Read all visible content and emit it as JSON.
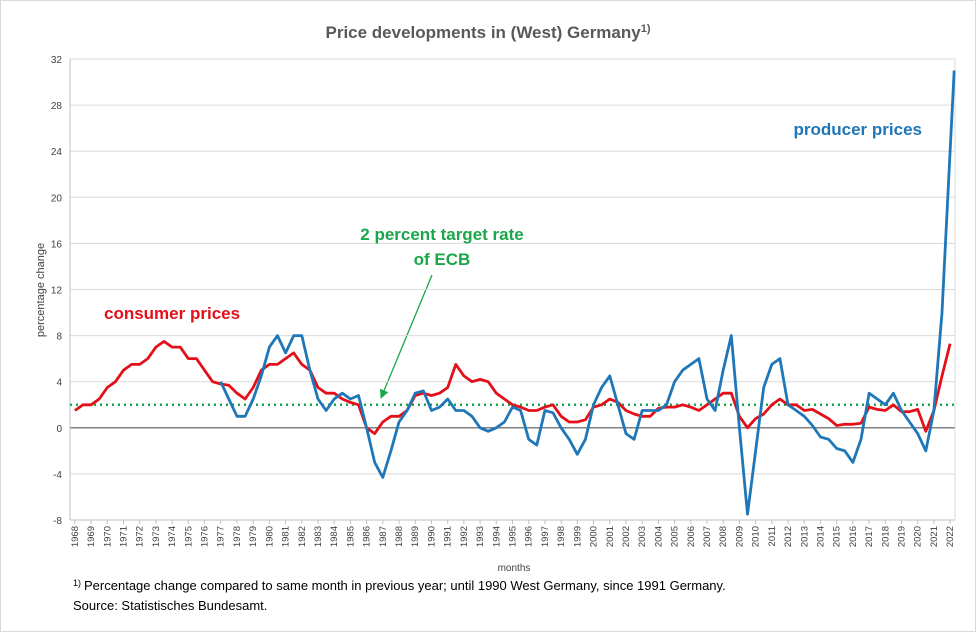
{
  "chart_data": {
    "type": "line",
    "title": "Price developments in (West) Germany",
    "title_superscript": "1)",
    "y_label": "percentage change",
    "x_label": "months",
    "footnote_marker": "1)",
    "footnote": "Percentage change compared to same month in previous year; until 1990 West Germany, since 1991 Germany.",
    "source": "Source: Statistisches Bundesamt.",
    "target": 2,
    "target_color": "#1aa64a",
    "target_label": [
      "2 percent target rate",
      "of ECB"
    ],
    "xlim": [
      1967.7,
      2022.3
    ],
    "ylim": [
      -8,
      32
    ],
    "yticks": [
      -8,
      -4,
      0,
      4,
      8,
      12,
      16,
      20,
      24,
      28,
      32
    ],
    "xticks": [
      1968,
      1969,
      1970,
      1971,
      1972,
      1973,
      1974,
      1975,
      1976,
      1977,
      1978,
      1979,
      1980,
      1981,
      1982,
      1983,
      1984,
      1985,
      1986,
      1987,
      1988,
      1989,
      1990,
      1991,
      1992,
      1993,
      1994,
      1995,
      1996,
      1997,
      1998,
      1999,
      2000,
      2001,
      2002,
      2003,
      2004,
      2005,
      2006,
      2007,
      2008,
      2009,
      2010,
      2011,
      2012,
      2013,
      2014,
      2015,
      2016,
      2017,
      2018,
      2019,
      2020,
      2021,
      2022
    ],
    "grid": true,
    "x": [
      1968,
      1968.5,
      1969,
      1969.5,
      1970,
      1970.5,
      1971,
      1971.5,
      1972,
      1972.5,
      1973,
      1973.5,
      1974,
      1974.5,
      1975,
      1975.5,
      1976,
      1976.5,
      1977,
      1977.5,
      1978,
      1978.5,
      1979,
      1979.5,
      1980,
      1980.5,
      1981,
      1981.5,
      1982,
      1982.5,
      1983,
      1983.5,
      1984,
      1984.5,
      1985,
      1985.5,
      1986,
      1986.5,
      1987,
      1987.5,
      1988,
      1988.5,
      1989,
      1989.5,
      1990,
      1990.5,
      1991,
      1991.5,
      1992,
      1992.5,
      1993,
      1993.5,
      1994,
      1994.5,
      1995,
      1995.5,
      1996,
      1996.5,
      1997,
      1997.5,
      1998,
      1998.5,
      1999,
      1999.5,
      2000,
      2000.5,
      2001,
      2001.5,
      2002,
      2002.5,
      2003,
      2003.5,
      2004,
      2004.5,
      2005,
      2005.5,
      2006,
      2006.5,
      2007,
      2007.5,
      2008,
      2008.5,
      2009,
      2009.5,
      2010,
      2010.5,
      2011,
      2011.5,
      2012,
      2012.5,
      2013,
      2013.5,
      2014,
      2014.5,
      2015,
      2015.5,
      2016,
      2016.5,
      2017,
      2017.5,
      2018,
      2018.5,
      2019,
      2019.5,
      2020,
      2020.5,
      2021,
      2021.5,
      2022,
      2022.25
    ],
    "series": [
      {
        "name": "consumer prices",
        "color": "#e3101a",
        "values": [
          1.5,
          2,
          2,
          2.5,
          3.5,
          4,
          5,
          5.5,
          5.5,
          6,
          7,
          7.5,
          7,
          7,
          6,
          6,
          5,
          4,
          3.8,
          3.7,
          3,
          2.5,
          3.5,
          5,
          5.5,
          5.5,
          6,
          6.5,
          5.5,
          5,
          3.5,
          3,
          3,
          2.5,
          2.2,
          2,
          0,
          -0.5,
          0.5,
          1,
          1,
          1.5,
          2.8,
          3,
          2.8,
          3,
          3.5,
          5.5,
          4.5,
          4,
          4.2,
          4,
          3,
          2.5,
          2,
          1.8,
          1.5,
          1.5,
          1.8,
          2,
          1,
          0.5,
          0.5,
          0.7,
          1.8,
          2,
          2.5,
          2.2,
          1.5,
          1.2,
          1,
          1,
          1.7,
          1.8,
          1.8,
          2,
          1.8,
          1.5,
          2,
          2.5,
          3,
          3,
          1,
          0,
          0.8,
          1.2,
          2,
          2.5,
          2,
          2,
          1.5,
          1.6,
          1.2,
          0.8,
          0.2,
          0.3,
          0.3,
          0.4,
          1.8,
          1.6,
          1.5,
          2,
          1.4,
          1.4,
          1.6,
          -0.3,
          1.5,
          4.5,
          7.3,
          null
        ]
      },
      {
        "name": "producer prices",
        "color": "#1f77b8",
        "values": [
          null,
          null,
          null,
          null,
          null,
          null,
          null,
          null,
          null,
          null,
          null,
          null,
          null,
          null,
          null,
          null,
          null,
          null,
          4,
          2.5,
          1,
          1,
          2.5,
          4.5,
          7,
          8,
          6.5,
          8,
          8,
          5,
          2.5,
          1.5,
          2.5,
          3,
          2.5,
          2.8,
          0,
          -3,
          -4.3,
          -2,
          0.5,
          1.5,
          3,
          3.2,
          1.5,
          1.8,
          2.5,
          1.5,
          1.5,
          1,
          0,
          -0.3,
          0,
          0.5,
          1.8,
          1.5,
          -1,
          -1.5,
          1.5,
          1.3,
          0,
          -1,
          -2.3,
          -1,
          2,
          3.5,
          4.5,
          2,
          -0.5,
          -1,
          1.5,
          1.5,
          1.5,
          2,
          4,
          5,
          5.5,
          6,
          2.5,
          1.5,
          5,
          8,
          0,
          -7.5,
          -2,
          3.5,
          5.5,
          6,
          2,
          1.5,
          1,
          0.2,
          -0.8,
          -1,
          -1.8,
          -2,
          -3,
          -1,
          3,
          2.5,
          2,
          3,
          1.5,
          0.5,
          -0.5,
          -2,
          1.5,
          10,
          24,
          31
        ]
      }
    ]
  }
}
